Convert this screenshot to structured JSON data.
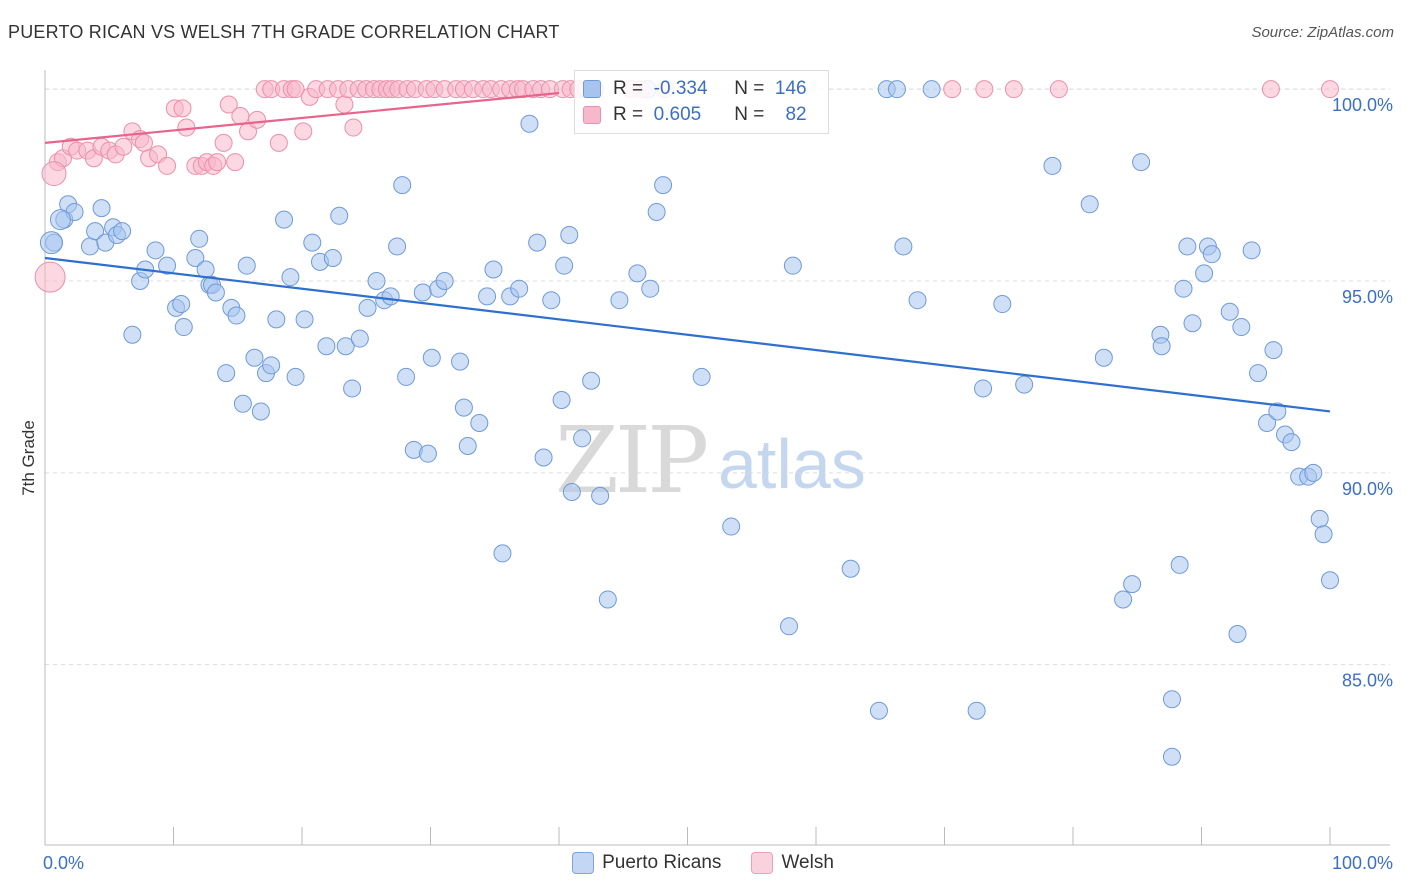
{
  "title": "PUERTO RICAN VS WELSH 7TH GRADE CORRELATION CHART",
  "source": "Source: ZipAtlas.com",
  "watermark": {
    "zip": "ZIP",
    "atlas": "atlas"
  },
  "legend": {
    "rows": [
      {
        "r_label": "R =",
        "r_value": "-0.334",
        "n_label": "N =",
        "n_value": "146",
        "color": "#a7c4ee"
      },
      {
        "r_label": "R =",
        "r_value": "0.605",
        "n_label": "N =",
        "n_value": "82",
        "color": "#f7b8cb"
      }
    ],
    "items": [
      {
        "label": "Puerto Ricans",
        "color": "#a7c4ee"
      },
      {
        "label": "Welsh",
        "color": "#f7b8cb"
      }
    ]
  },
  "chart_data": {
    "type": "scatter",
    "ylabel": "7th Grade",
    "x_tick_labels": [
      "0.0%",
      "100.0%"
    ],
    "y_tick_labels": [
      "85.0%",
      "90.0%",
      "95.0%",
      "100.0%"
    ],
    "xlim": [
      0,
      100
    ],
    "ylim": [
      80.3,
      100.5
    ],
    "y_ticks": [
      85,
      90,
      95,
      100
    ],
    "grid": true,
    "series": [
      {
        "name": "Puerto Ricans",
        "color": "#a7c4ee",
        "stroke": "#6f9ad8",
        "trend": {
          "x": [
            0,
            100
          ],
          "y": [
            95.6,
            91.6
          ],
          "color": "#2f6fd0"
        },
        "points": [
          [
            0.7,
            96.0
          ],
          [
            1.5,
            96.6
          ],
          [
            1.8,
            97.0
          ],
          [
            2.3,
            96.8
          ],
          [
            3.5,
            95.9
          ],
          [
            3.9,
            96.3
          ],
          [
            4.4,
            96.9
          ],
          [
            4.7,
            96.0
          ],
          [
            5.3,
            96.4
          ],
          [
            5.6,
            96.2
          ],
          [
            6.0,
            96.3
          ],
          [
            6.8,
            93.6
          ],
          [
            7.4,
            95.0
          ],
          [
            7.8,
            95.3
          ],
          [
            8.6,
            95.8
          ],
          [
            9.5,
            95.4
          ],
          [
            10.2,
            94.3
          ],
          [
            10.6,
            94.4
          ],
          [
            10.8,
            93.8
          ],
          [
            11.7,
            95.6
          ],
          [
            12.0,
            96.1
          ],
          [
            12.5,
            95.3
          ],
          [
            12.8,
            94.9
          ],
          [
            13.0,
            94.9
          ],
          [
            13.3,
            94.7
          ],
          [
            14.1,
            92.6
          ],
          [
            14.5,
            94.3
          ],
          [
            14.9,
            94.1
          ],
          [
            15.4,
            91.8
          ],
          [
            15.7,
            95.4
          ],
          [
            16.3,
            93.0
          ],
          [
            16.8,
            91.6
          ],
          [
            17.2,
            92.6
          ],
          [
            17.6,
            92.8
          ],
          [
            18.0,
            94.0
          ],
          [
            18.6,
            96.6
          ],
          [
            19.1,
            95.1
          ],
          [
            19.5,
            92.5
          ],
          [
            20.2,
            94.0
          ],
          [
            20.8,
            96.0
          ],
          [
            21.4,
            95.5
          ],
          [
            21.9,
            93.3
          ],
          [
            22.4,
            95.6
          ],
          [
            22.9,
            96.7
          ],
          [
            23.4,
            93.3
          ],
          [
            23.9,
            92.2
          ],
          [
            24.5,
            93.5
          ],
          [
            25.1,
            94.3
          ],
          [
            25.8,
            95.0
          ],
          [
            26.4,
            94.5
          ],
          [
            26.9,
            94.6
          ],
          [
            27.4,
            95.9
          ],
          [
            27.8,
            97.5
          ],
          [
            28.1,
            92.5
          ],
          [
            28.7,
            90.6
          ],
          [
            29.4,
            94.7
          ],
          [
            29.8,
            90.5
          ],
          [
            30.1,
            93.0
          ],
          [
            30.6,
            94.8
          ],
          [
            31.1,
            95.0
          ],
          [
            32.3,
            92.9
          ],
          [
            32.6,
            91.7
          ],
          [
            32.9,
            90.7
          ],
          [
            33.8,
            91.3
          ],
          [
            34.4,
            94.6
          ],
          [
            34.9,
            95.3
          ],
          [
            35.6,
            87.9
          ],
          [
            36.2,
            94.6
          ],
          [
            36.9,
            94.8
          ],
          [
            37.7,
            99.1
          ],
          [
            38.3,
            96.0
          ],
          [
            38.8,
            90.4
          ],
          [
            39.4,
            94.5
          ],
          [
            40.2,
            91.9
          ],
          [
            40.4,
            95.4
          ],
          [
            40.8,
            96.2
          ],
          [
            41.0,
            89.5
          ],
          [
            41.8,
            90.9
          ],
          [
            42.5,
            92.4
          ],
          [
            43.2,
            89.4
          ],
          [
            43.8,
            86.7
          ],
          [
            44.7,
            94.5
          ],
          [
            46.1,
            95.2
          ],
          [
            46.9,
            100.0
          ],
          [
            47.1,
            94.8
          ],
          [
            47.6,
            96.8
          ],
          [
            48.1,
            97.5
          ],
          [
            51.1,
            92.5
          ],
          [
            53.4,
            88.6
          ],
          [
            58.2,
            95.4
          ],
          [
            57.9,
            86.0
          ],
          [
            62.7,
            87.5
          ],
          [
            64.9,
            83.8
          ],
          [
            65.5,
            100.0
          ],
          [
            66.3,
            100.0
          ],
          [
            66.8,
            95.9
          ],
          [
            67.9,
            94.5
          ],
          [
            69.0,
            100.0
          ],
          [
            72.5,
            83.8
          ],
          [
            73.0,
            92.2
          ],
          [
            74.5,
            94.4
          ],
          [
            76.2,
            92.3
          ],
          [
            78.4,
            98.0
          ],
          [
            81.3,
            97.0
          ],
          [
            82.4,
            93.0
          ],
          [
            83.9,
            86.7
          ],
          [
            84.6,
            87.1
          ],
          [
            85.3,
            98.1
          ],
          [
            86.8,
            93.6
          ],
          [
            86.9,
            93.3
          ],
          [
            87.7,
            84.1
          ],
          [
            87.7,
            82.6
          ],
          [
            88.3,
            87.6
          ],
          [
            88.6,
            94.8
          ],
          [
            88.9,
            95.9
          ],
          [
            89.3,
            93.9
          ],
          [
            90.2,
            95.2
          ],
          [
            90.5,
            95.9
          ],
          [
            90.8,
            95.7
          ],
          [
            92.2,
            94.2
          ],
          [
            92.8,
            85.8
          ],
          [
            93.1,
            93.8
          ],
          [
            93.9,
            95.8
          ],
          [
            94.4,
            92.6
          ],
          [
            95.1,
            91.3
          ],
          [
            95.6,
            93.2
          ],
          [
            95.9,
            91.6
          ],
          [
            96.5,
            91.0
          ],
          [
            97.0,
            90.8
          ],
          [
            97.6,
            89.9
          ],
          [
            98.3,
            89.9
          ],
          [
            98.7,
            90.0
          ],
          [
            99.2,
            88.8
          ],
          [
            99.5,
            88.4
          ],
          [
            100.0,
            87.2
          ]
        ],
        "big_points": [
          [
            0.5,
            96.0,
            11
          ],
          [
            1.2,
            96.6,
            10
          ]
        ]
      },
      {
        "name": "Welsh",
        "color": "#f7b8cb",
        "stroke": "#ec8fab",
        "trend": {
          "x": [
            0,
            40
          ],
          "y": [
            98.6,
            99.9
          ],
          "color": "#e8648d"
        },
        "points": [
          [
            1.0,
            98.1
          ],
          [
            1.4,
            98.2
          ],
          [
            2.0,
            98.5
          ],
          [
            2.5,
            98.4
          ],
          [
            3.3,
            98.4
          ],
          [
            3.8,
            98.2
          ],
          [
            4.4,
            98.5
          ],
          [
            5.0,
            98.4
          ],
          [
            5.5,
            98.3
          ],
          [
            6.1,
            98.5
          ],
          [
            6.8,
            98.9
          ],
          [
            7.4,
            98.7
          ],
          [
            7.7,
            98.6
          ],
          [
            8.1,
            98.2
          ],
          [
            8.8,
            98.3
          ],
          [
            9.5,
            98.0
          ],
          [
            10.1,
            99.5
          ],
          [
            10.7,
            99.5
          ],
          [
            11.0,
            99.0
          ],
          [
            11.7,
            98.0
          ],
          [
            12.2,
            98.0
          ],
          [
            12.6,
            98.1
          ],
          [
            13.1,
            98.0
          ],
          [
            13.4,
            98.1
          ],
          [
            13.9,
            98.6
          ],
          [
            14.3,
            99.6
          ],
          [
            14.8,
            98.1
          ],
          [
            15.2,
            99.3
          ],
          [
            15.8,
            98.9
          ],
          [
            16.5,
            99.2
          ],
          [
            17.1,
            100.0
          ],
          [
            17.6,
            100.0
          ],
          [
            18.2,
            98.6
          ],
          [
            18.6,
            100.0
          ],
          [
            19.2,
            100.0
          ],
          [
            19.5,
            100.0
          ],
          [
            20.1,
            98.9
          ],
          [
            20.6,
            99.8
          ],
          [
            21.1,
            100.0
          ],
          [
            22.0,
            100.0
          ],
          [
            22.8,
            100.0
          ],
          [
            23.3,
            99.6
          ],
          [
            23.6,
            100.0
          ],
          [
            24.4,
            100.0
          ],
          [
            25.0,
            100.0
          ],
          [
            25.6,
            100.0
          ],
          [
            26.1,
            100.0
          ],
          [
            26.6,
            100.0
          ],
          [
            27.0,
            100.0
          ],
          [
            27.5,
            100.0
          ],
          [
            28.2,
            100.0
          ],
          [
            28.8,
            100.0
          ],
          [
            29.7,
            100.0
          ],
          [
            30.3,
            100.0
          ],
          [
            31.1,
            100.0
          ],
          [
            32.0,
            100.0
          ],
          [
            32.6,
            100.0
          ],
          [
            33.3,
            100.0
          ],
          [
            34.1,
            100.0
          ],
          [
            34.7,
            100.0
          ],
          [
            35.5,
            100.0
          ],
          [
            36.2,
            100.0
          ],
          [
            36.8,
            100.0
          ],
          [
            37.2,
            100.0
          ],
          [
            38.0,
            100.0
          ],
          [
            38.6,
            100.0
          ],
          [
            39.3,
            100.0
          ],
          [
            40.3,
            100.0
          ],
          [
            40.9,
            100.0
          ],
          [
            41.5,
            100.0
          ],
          [
            42.1,
            100.0
          ],
          [
            42.8,
            100.0
          ],
          [
            45.6,
            100.0
          ],
          [
            46.4,
            100.0
          ],
          [
            48.3,
            100.0
          ],
          [
            70.6,
            100.0
          ],
          [
            73.1,
            100.0
          ],
          [
            75.4,
            100.0
          ],
          [
            78.9,
            100.0
          ],
          [
            95.4,
            100.0
          ],
          [
            100.0,
            100.0
          ],
          [
            24.0,
            99.0
          ]
        ],
        "big_points": [
          [
            0.4,
            95.1,
            15
          ],
          [
            0.7,
            97.8,
            12
          ]
        ]
      }
    ]
  }
}
